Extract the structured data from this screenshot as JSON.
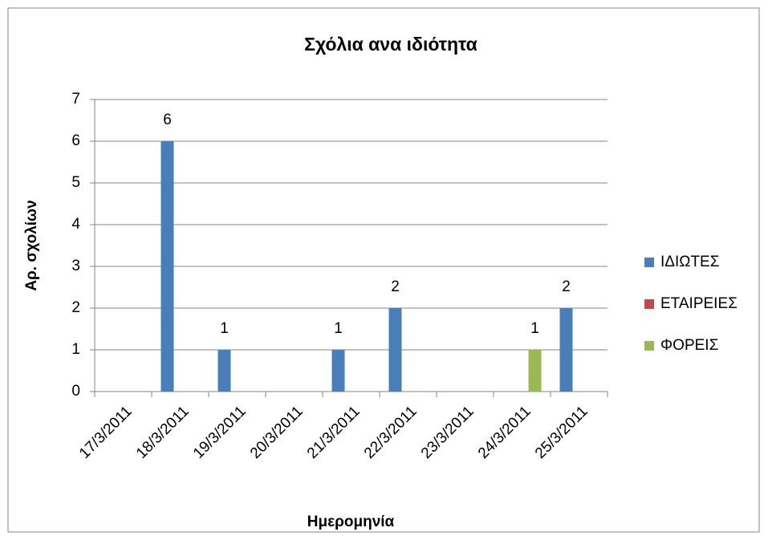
{
  "chart_data": {
    "type": "bar",
    "title": "Σχόλια ανα ιδιότητα",
    "x_label": "Ημερομηνία",
    "y_label": "Αρ. σχολίων",
    "categories": [
      "17/3/2011",
      "18/3/2011",
      "19/3/2011",
      "20/3/2011",
      "21/3/2011",
      "22/3/2011",
      "23/3/2011",
      "24/3/2011",
      "25/3/2011"
    ],
    "series": [
      {
        "name": "ΙΔΙΩΤΕΣ",
        "color": "#4a7ebb",
        "values": [
          null,
          6,
          1,
          null,
          1,
          2,
          null,
          null,
          2
        ]
      },
      {
        "name": "ΕΤΑΙΡΕΙΕΣ",
        "color": "#be4b48",
        "values": [
          null,
          null,
          null,
          null,
          null,
          null,
          null,
          null,
          null
        ]
      },
      {
        "name": "ΦΟΡΕΙΣ",
        "color": "#98b954",
        "values": [
          null,
          null,
          null,
          null,
          null,
          null,
          null,
          1,
          null
        ]
      }
    ],
    "ylim": [
      0,
      7
    ],
    "yticks": [
      0,
      1,
      2,
      3,
      4,
      5,
      6,
      7
    ],
    "grid": true,
    "legend": "right"
  }
}
